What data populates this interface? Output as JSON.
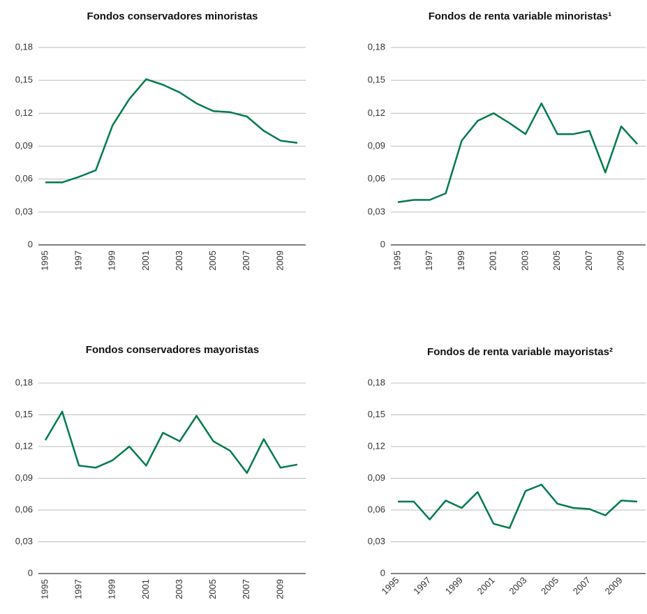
{
  "chart_data": [
    {
      "type": "line",
      "title": "Fondos conservadores minoristas",
      "categories": [
        "1995",
        null,
        "1997",
        null,
        "1999",
        null,
        "2001",
        null,
        "2003",
        null,
        "2005",
        null,
        "2007",
        null,
        "2009",
        null
      ],
      "values": [
        0.057,
        0.057,
        0.062,
        0.068,
        0.109,
        0.133,
        0.151,
        0.146,
        0.139,
        0.129,
        0.122,
        0.121,
        0.117,
        0.104,
        0.095,
        0.093
      ],
      "color": "#007a4b",
      "ylim": [
        0,
        0.18
      ],
      "yticks": [
        0,
        {
          "value": 0.03,
          "label": "0,03"
        },
        {
          "value": 0.06,
          "label": "0,06"
        },
        {
          "value": 0.09,
          "label": "0,09"
        },
        {
          "value": 0.12,
          "label": "0,12"
        },
        {
          "value": 0.15,
          "label": "0,15"
        },
        {
          "value": 0.18,
          "label": "0,18"
        }
      ],
      "grid": true,
      "xtick_rotation": -90
    },
    {
      "type": "line",
      "title": "Fondos de renta variable minoristas¹",
      "categories": [
        "1995",
        null,
        "1997",
        null,
        "1999",
        null,
        "2001",
        null,
        "2003",
        null,
        "2005",
        null,
        "2007",
        null,
        "2009",
        null
      ],
      "values": [
        0.039,
        0.041,
        0.041,
        0.047,
        0.095,
        0.113,
        0.12,
        0.111,
        0.101,
        0.129,
        0.101,
        0.101,
        0.104,
        0.066,
        0.108,
        0.092
      ],
      "color": "#007a4b",
      "ylim": [
        0,
        0.18
      ],
      "yticks": [
        0,
        {
          "value": 0.03,
          "label": "0,03"
        },
        {
          "value": 0.06,
          "label": "0,06"
        },
        {
          "value": 0.09,
          "label": "0,09"
        },
        {
          "value": 0.12,
          "label": "0,12"
        },
        {
          "value": 0.15,
          "label": "0,15"
        },
        {
          "value": 0.18,
          "label": "0,18"
        }
      ],
      "grid": true,
      "xtick_rotation": -90
    },
    {
      "type": "line",
      "title": "Fondos conservadores mayoristas",
      "categories": [
        "1995",
        null,
        "1997",
        null,
        "1999",
        null,
        "2001",
        null,
        "2003",
        null,
        "2005",
        null,
        "2007",
        null,
        "2009",
        null
      ],
      "values": [
        0.126,
        0.153,
        0.102,
        0.1,
        0.107,
        0.12,
        0.102,
        0.133,
        0.125,
        0.149,
        0.125,
        0.116,
        0.095,
        0.127,
        0.1,
        0.103
      ],
      "color": "#007a4b",
      "ylim": [
        0,
        0.18
      ],
      "yticks": [
        0,
        {
          "value": 0.03,
          "label": "0,03"
        },
        {
          "value": 0.06,
          "label": "0,06"
        },
        {
          "value": 0.09,
          "label": "0,09"
        },
        {
          "value": 0.12,
          "label": "0,12"
        },
        {
          "value": 0.15,
          "label": "0,15"
        },
        {
          "value": 0.18,
          "label": "0,18"
        }
      ],
      "grid": true,
      "xtick_rotation": -90
    },
    {
      "type": "line",
      "title": "Fondos de renta variable mayoristas²",
      "categories": [
        "1995",
        null,
        "1997",
        null,
        "1999",
        null,
        "2001",
        null,
        "2003",
        null,
        "2005",
        null,
        "2007",
        null,
        "2009",
        null
      ],
      "values": [
        0.068,
        0.068,
        0.051,
        0.069,
        0.062,
        0.077,
        0.047,
        0.043,
        0.078,
        0.084,
        0.066,
        0.062,
        0.061,
        0.055,
        0.069,
        0.068
      ],
      "color": "#007a4b",
      "ylim": [
        0,
        0.18
      ],
      "yticks": [
        0,
        {
          "value": 0.03,
          "label": "0,03"
        },
        {
          "value": 0.06,
          "label": "0,06"
        },
        {
          "value": 0.09,
          "label": "0,09"
        },
        {
          "value": 0.12,
          "label": "0,12"
        },
        {
          "value": 0.15,
          "label": "0,15"
        },
        {
          "value": 0.18,
          "label": "0,18"
        }
      ],
      "grid": true,
      "xtick_rotation": -45
    }
  ]
}
